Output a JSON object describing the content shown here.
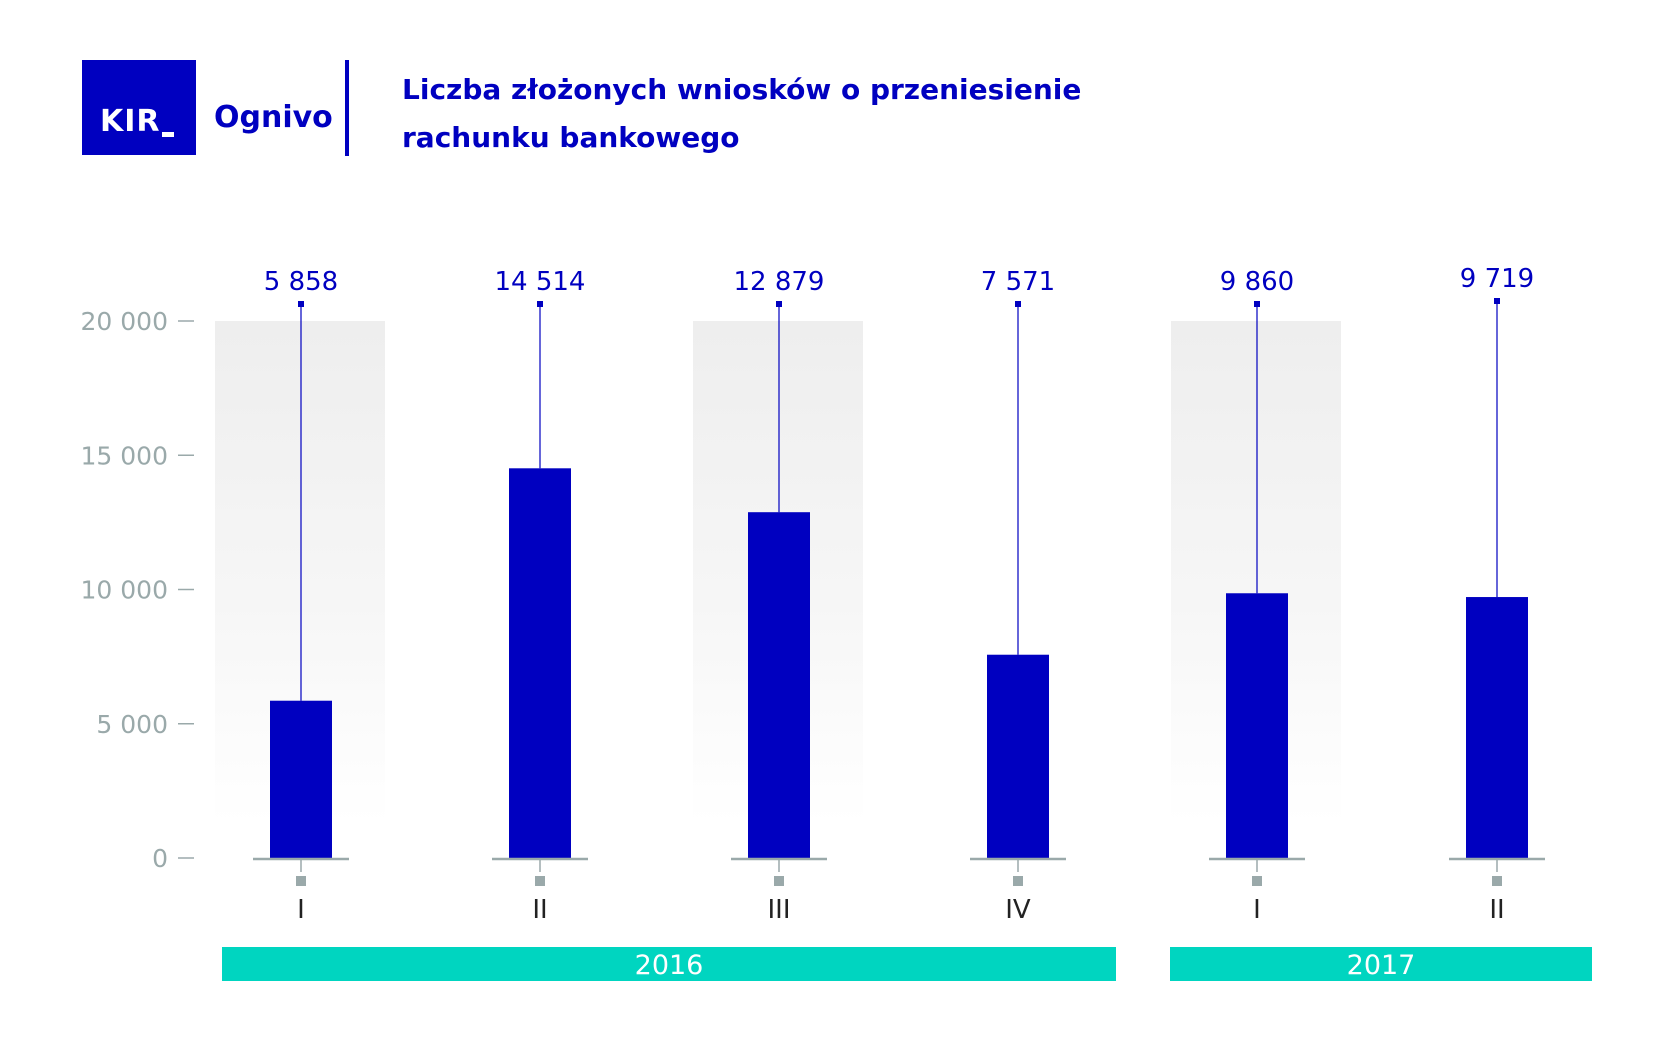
{
  "header": {
    "logo_text": "KIR",
    "brand": "Ognivo",
    "title_line1": "Liczba złożonych wniosków o przeniesienie",
    "title_line2": "rachunku bankowego"
  },
  "colors": {
    "brand_blue": "#0000c0",
    "year_band": "#00d5c0",
    "axis_gray": "#9aa9aa"
  },
  "chart_data": {
    "type": "bar",
    "categories": [
      "I",
      "II",
      "III",
      "IV",
      "I",
      "II"
    ],
    "groups": [
      {
        "label": "2016",
        "categories": [
          0,
          1,
          2,
          3
        ]
      },
      {
        "label": "2017",
        "categories": [
          4,
          5
        ]
      }
    ],
    "series": [
      {
        "values": [
          5858,
          14514,
          12879,
          7571,
          9860,
          9719
        ]
      }
    ],
    "data_labels": [
      "5 858",
      "14 514",
      "12 879",
      "7 571",
      "9 860",
      "9 719"
    ],
    "y_ticks": [
      "0",
      "5 000",
      "10 000",
      "15 000",
      "20 000"
    ],
    "y_tick_values": [
      0,
      5000,
      10000,
      15000,
      20000
    ],
    "ylim": [
      0,
      20000
    ],
    "title": "Liczba złożonych wniosków o przeniesienie rachunku bankowego",
    "xlabel": "",
    "ylabel": "",
    "grid": false,
    "legend": "none"
  }
}
